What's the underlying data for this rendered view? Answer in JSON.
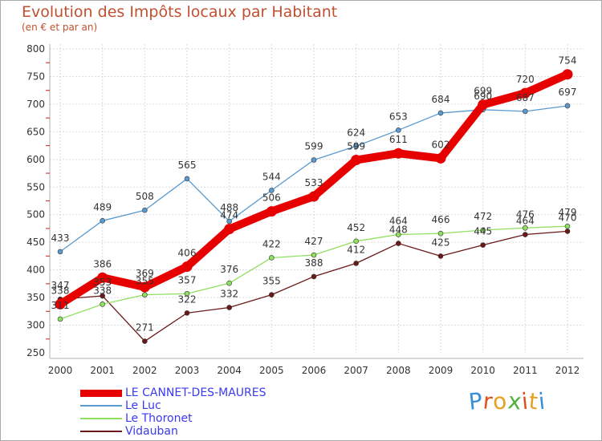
{
  "chart_data": {
    "type": "line",
    "title": "Evolution des Impôts locaux par Habitant",
    "subtitle": "(en € et par an)",
    "x": [
      "2000",
      "2001",
      "2002",
      "2003",
      "2004",
      "2005",
      "2006",
      "2007",
      "2008",
      "2009",
      "2010",
      "2011",
      "2012"
    ],
    "ylim": [
      250,
      800
    ],
    "yticks": [
      250,
      300,
      350,
      400,
      450,
      500,
      550,
      600,
      650,
      700,
      750,
      800
    ],
    "grid": true,
    "legend_position": "bottom",
    "series": [
      {
        "name": "LE CANNET-DES-MAURES",
        "color": "#e60000",
        "values": [
          338,
          386,
          369,
          406,
          474,
          506,
          533,
          599,
          611,
          602,
          699,
          720,
          754
        ]
      },
      {
        "name": "Le Luc",
        "color": "#5a9ad0",
        "values": [
          433,
          489,
          508,
          565,
          488,
          544,
          599,
          624,
          653,
          684,
          690,
          687,
          697
        ]
      },
      {
        "name": "Le Thoronet",
        "color": "#90e060",
        "values": [
          311,
          338,
          355,
          357,
          376,
          422,
          427,
          452,
          464,
          466,
          472,
          476,
          479
        ]
      },
      {
        "name": "Vidauban",
        "color": "#6a1818",
        "values": [
          347,
          353,
          271,
          322,
          332,
          355,
          388,
          412,
          448,
          425,
          445,
          464,
          470
        ]
      }
    ]
  },
  "brand": {
    "letters": [
      "P",
      "r",
      "o",
      "x",
      "i",
      "t",
      "i"
    ],
    "colors": [
      "#3a8fd8",
      "#e05020",
      "#e8a020",
      "#50b040",
      "#e05020",
      "#e8a020",
      "#3a8fd8"
    ]
  }
}
